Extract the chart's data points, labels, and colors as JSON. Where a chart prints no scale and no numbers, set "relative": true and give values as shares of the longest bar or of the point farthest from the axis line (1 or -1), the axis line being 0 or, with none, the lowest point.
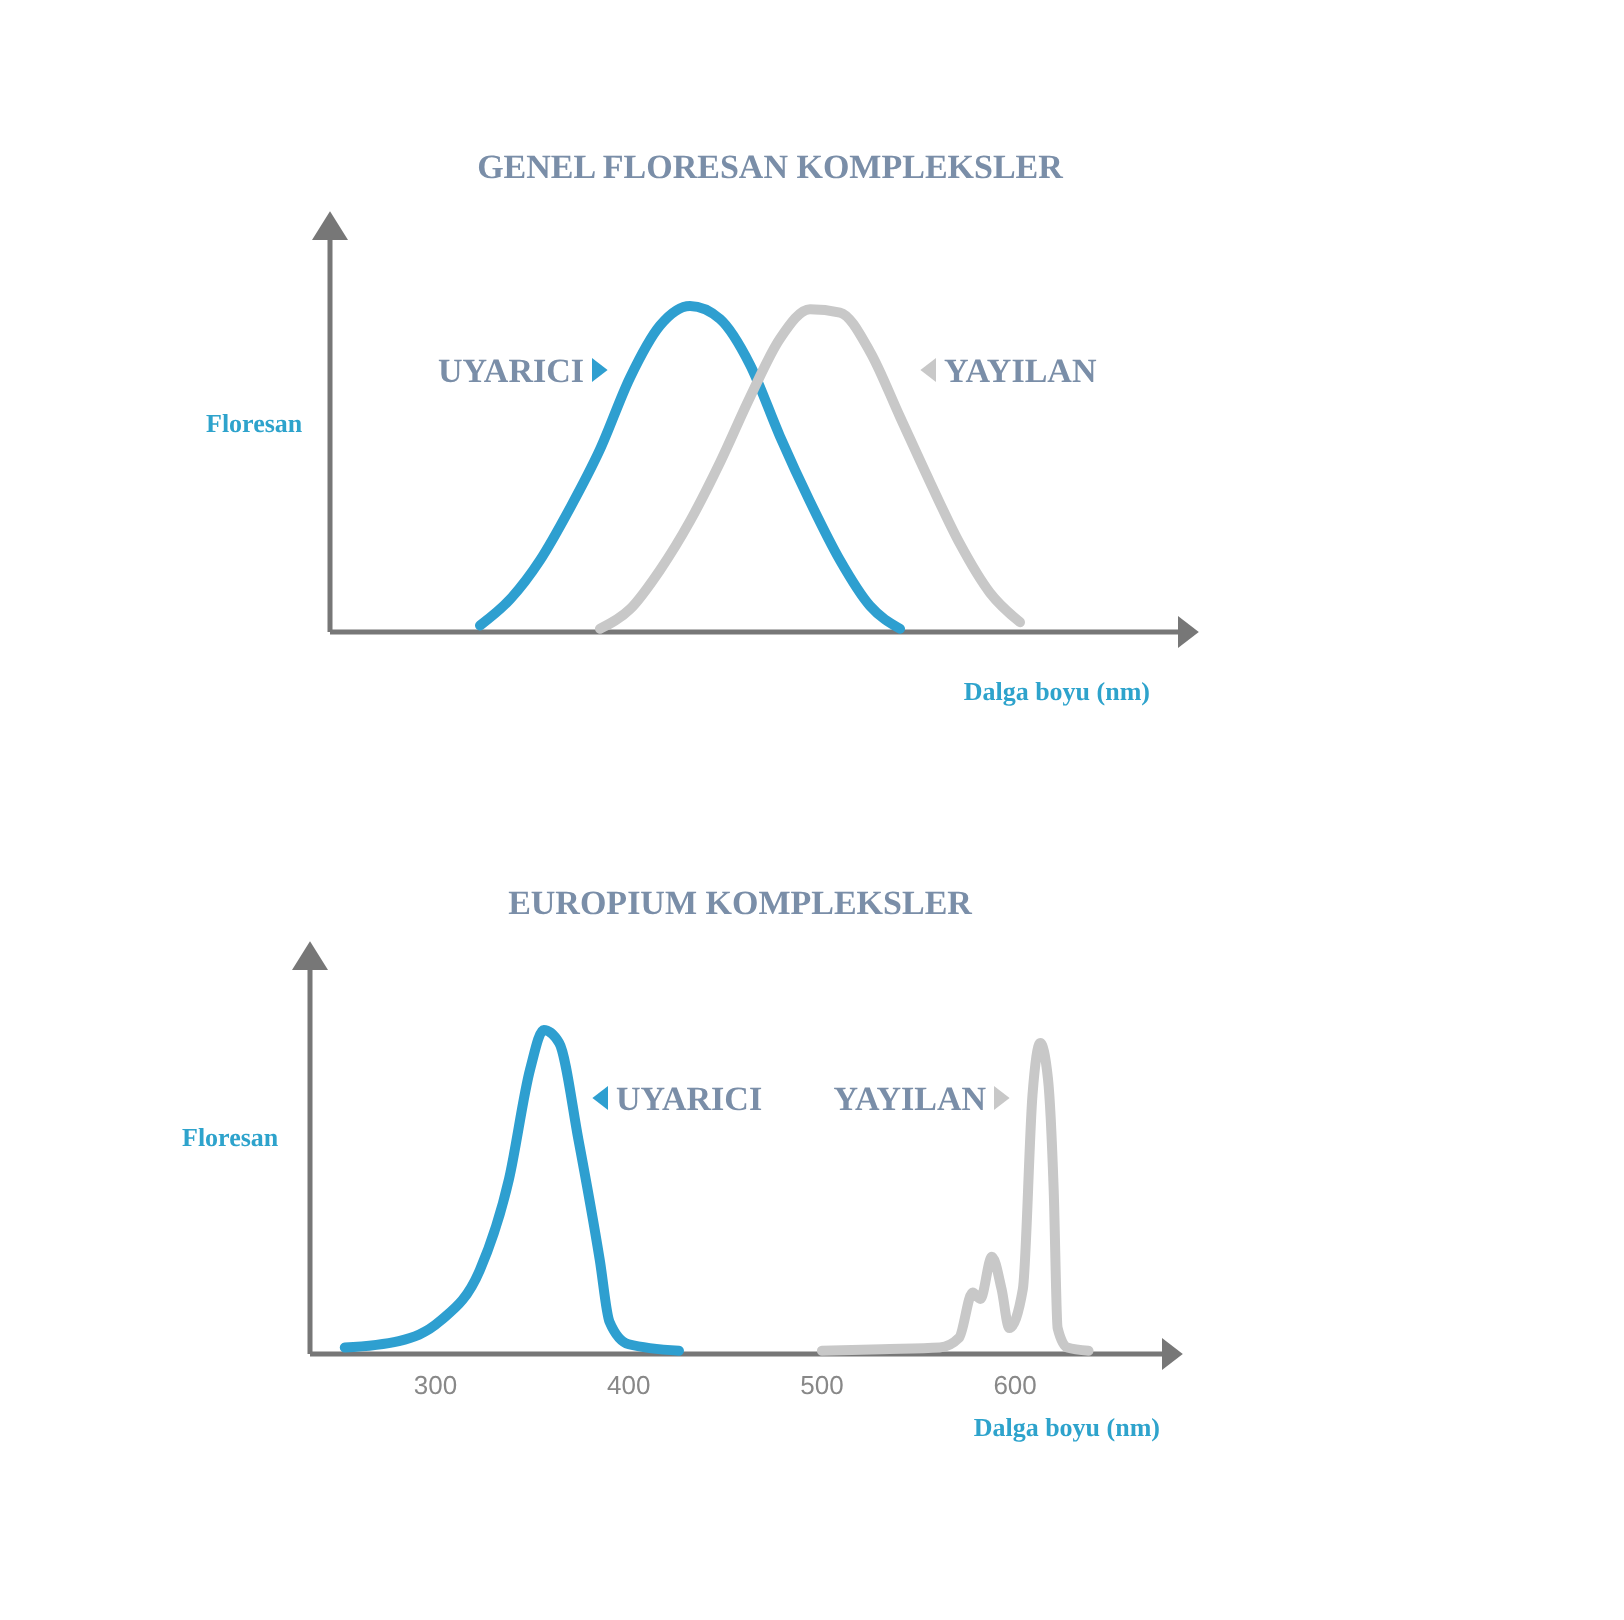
{
  "chart_data": [
    {
      "type": "line",
      "title": "GENEL FLORESAN KOMPLEKSLER",
      "xlabel": "Dalga boyu (nm)",
      "ylabel": "Floresan",
      "relative": true,
      "tick_labels": false,
      "categories": [
        null,
        null,
        null,
        null,
        null,
        null,
        null,
        null,
        null,
        null,
        null,
        null,
        null,
        null,
        null,
        null,
        null,
        null,
        null,
        null,
        null,
        null,
        null,
        null,
        null,
        null,
        null,
        null,
        null,
        null
      ],
      "series": [
        {
          "name": "UYARICI",
          "color": "#2e9fd0",
          "values": [
            null,
            null,
            null,
            null,
            null,
            0.02,
            0.1,
            0.22,
            0.38,
            0.56,
            0.78,
            0.94,
            1,
            0.96,
            0.82,
            0.6,
            0.4,
            0.22,
            0.08,
            0.01,
            null,
            null,
            null,
            null,
            null,
            null,
            null,
            null,
            null,
            null
          ]
        },
        {
          "name": "YAYILAN",
          "color": "#c8c8c8",
          "values": [
            null,
            null,
            null,
            null,
            null,
            null,
            null,
            null,
            null,
            0.01,
            0.07,
            0.19,
            0.34,
            0.52,
            0.72,
            0.9,
            0.99,
            0.98,
            0.86,
            0.66,
            0.46,
            0.27,
            0.12,
            0.03,
            null,
            null,
            null,
            null,
            null,
            null
          ]
        }
      ]
    },
    {
      "type": "line",
      "title": "EUROPIUM KOMPLEKSLER",
      "xlabel": "Dalga boyu (nm)",
      "ylabel": "Floresan",
      "relative": true,
      "tick_labels": "x",
      "xlim": [
        235,
        675
      ],
      "xticks": [
        300,
        400,
        500,
        600
      ],
      "series": [
        {
          "name": "UYARICI",
          "color": "#2e9fd0",
          "x": [
            253,
            281,
            302,
            323,
            338,
            349,
            356,
            364,
            374,
            385,
            390,
            400,
            426
          ],
          "values": [
            0.02,
            0.04,
            0.1,
            0.26,
            0.54,
            0.88,
            1,
            0.96,
            0.66,
            0.29,
            0.1,
            0.03,
            0.01
          ]
        },
        {
          "name": "YAYILAN",
          "color": "#c8c8c8",
          "x": [
            500,
            531,
            561,
            571,
            578,
            582,
            588,
            593,
            597,
            604,
            609,
            613,
            617,
            620,
            622,
            627,
            638
          ],
          "values": [
            0.01,
            0.015,
            0.02,
            0.05,
            0.19,
            0.17,
            0.3,
            0.2,
            0.08,
            0.2,
            0.8,
            0.96,
            0.85,
            0.5,
            0.08,
            0.02,
            0.01
          ]
        }
      ]
    }
  ]
}
